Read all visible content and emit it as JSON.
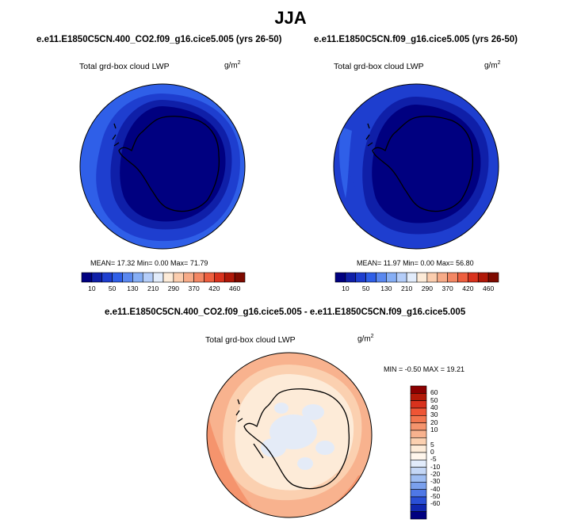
{
  "page_title": "JJA",
  "panels": [
    {
      "case_title": "e.e11.E1850C5CN.400_CO2.f09_g16.cice5.005 (yrs 26-50)",
      "variable": "Total grd-box cloud LWP",
      "units_base": "g/m",
      "units_exp": "2",
      "stats": "MEAN= 17.32  Min=  0.00  Max= 71.79"
    },
    {
      "case_title": "e.e11.E1850C5CN.f09_g16.cice5.005 (yrs 26-50)",
      "variable": "Total grd-box cloud LWP",
      "units_base": "g/m",
      "units_exp": "2",
      "stats": "MEAN= 11.97  Min=  0.00  Max= 56.80"
    }
  ],
  "diff_panel": {
    "case_title": "e.e11.E1850C5CN.400_CO2.f09_g16.cice5.005 - e.e11.E1850C5CN.f09_g16.cice5.005",
    "variable": "Total grd-box cloud LWP",
    "units_base": "g/m",
    "units_exp": "2",
    "stats": "MIN = -0.50 MAX = 19.21"
  },
  "colorbar_abs": {
    "colors": [
      "#000080",
      "#0f1fa8",
      "#1e3ecf",
      "#2f5fe8",
      "#5a88f0",
      "#86aef5",
      "#b4cdf9",
      "#e2ecfb",
      "#fdebd8",
      "#fbcdae",
      "#f7ab88",
      "#f38764",
      "#ee5f3f",
      "#d9321d",
      "#b01808",
      "#7e0a00"
    ],
    "tick_labels": [
      "10",
      "50",
      "130",
      "210",
      "290",
      "370",
      "420",
      "460"
    ]
  },
  "colorbar_diff": {
    "colors": [
      "#8b0000",
      "#b31a08",
      "#d9321d",
      "#ee5535",
      "#f2764f",
      "#f5946d",
      "#f8b28e",
      "#fbd0b0",
      "#fdebd8",
      "#fff6ec",
      "#e2ecfb",
      "#c4d7f6",
      "#9ebdf2",
      "#7aa0ed",
      "#4f78e6",
      "#2a50d6",
      "#1028b0",
      "#000080"
    ],
    "tick_labels": [
      "60",
      "50",
      "40",
      "30",
      "20",
      "10",
      "5",
      "0",
      "-5",
      "-10",
      "-20",
      "-30",
      "-40",
      "-50",
      "-60"
    ]
  },
  "chart_data": [
    {
      "type": "heatmap",
      "projection": "south-polar-stereographic",
      "title": "e.e11.E1850C5CN.400_CO2.f09_g16.cice5.005 (yrs 26-50)",
      "variable": "Total grd-box cloud LWP",
      "units": "g/m^2",
      "stats": {
        "mean": 17.32,
        "min": 0.0,
        "max": 71.79
      },
      "contour_levels": [
        10,
        50,
        130,
        210,
        290,
        370,
        420,
        460
      ]
    },
    {
      "type": "heatmap",
      "projection": "south-polar-stereographic",
      "title": "e.e11.E1850C5CN.f09_g16.cice5.005 (yrs 26-50)",
      "variable": "Total grd-box cloud LWP",
      "units": "g/m^2",
      "stats": {
        "mean": 11.97,
        "min": 0.0,
        "max": 56.8
      },
      "contour_levels": [
        10,
        50,
        130,
        210,
        290,
        370,
        420,
        460
      ]
    },
    {
      "type": "heatmap",
      "projection": "south-polar-stereographic",
      "title": "e.e11.E1850C5CN.400_CO2.f09_g16.cice5.005 - e.e11.E1850C5CN.f09_g16.cice5.005",
      "variable": "Total grd-box cloud LWP",
      "units": "g/m^2",
      "stats": {
        "min": -0.5,
        "max": 19.21
      },
      "contour_levels": [
        -60,
        -50,
        -40,
        -30,
        -20,
        -10,
        -5,
        0,
        5,
        10,
        20,
        30,
        40,
        50,
        60
      ]
    }
  ]
}
